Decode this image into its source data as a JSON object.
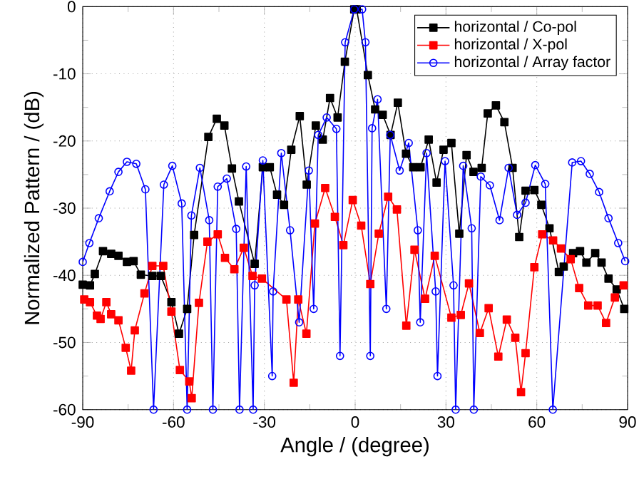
{
  "chart_data": {
    "type": "line",
    "xlabel": "Angle / (degree)",
    "ylabel": "Normalized Pattern / (dB)",
    "xlim": [
      -90,
      90
    ],
    "ylim": [
      -60,
      0
    ],
    "xticks": [
      -90,
      -60,
      -30,
      0,
      30,
      60,
      90
    ],
    "yticks": [
      -60,
      -50,
      -40,
      -30,
      -20,
      -10,
      0
    ],
    "grid": true,
    "legend": "top right",
    "line_style": "solid",
    "series": [
      {
        "name": "horizontal / Co-pol",
        "color": "#000000",
        "marker": "square",
        "x": [
          -90,
          -87.6,
          -86,
          -83.3,
          -80.6,
          -78.2,
          -75.4,
          -73.2,
          -70.8,
          -67,
          -64.2,
          -60.7,
          -58.2,
          -55.5,
          -53.2,
          -48.5,
          -45.7,
          -43.2,
          -40.7,
          -38.4,
          -33.2,
          -30.5,
          -28.2,
          -25.8,
          -23.5,
          -21.1,
          -18.3,
          -16,
          -13,
          -10.7,
          -8.3,
          -5.8,
          -3.4,
          -0.3,
          0.5,
          4.2,
          6.6,
          9.1,
          11.7,
          14.1,
          16.8,
          19.2,
          21.6,
          24.3,
          26.9,
          29.2,
          31.8,
          34.4,
          36.8,
          39.1,
          41.8,
          43.8,
          46.5,
          49.3,
          52,
          54.2,
          56.3,
          59.2,
          61.5,
          64.2,
          67.3,
          68.9,
          72,
          74.3,
          76.4,
          79.3,
          81.4,
          83.7,
          86.4,
          88.9
        ],
        "values": [
          -41.4,
          -41.5,
          -39.8,
          -36.4,
          -36.8,
          -37.1,
          -38,
          -37.9,
          -39.9,
          -40.1,
          -40.1,
          -44,
          -48.7,
          -45,
          -34,
          -19.4,
          -16.7,
          -17.7,
          -24.1,
          -29,
          -38.3,
          -23.9,
          -23.9,
          -28,
          -29.5,
          -21.3,
          -16.3,
          -26.5,
          -17.7,
          -19.8,
          -13.6,
          -16.5,
          -8.2,
          -0.4,
          -0.4,
          -10.2,
          -15.3,
          -16.1,
          -19.1,
          -14.3,
          -21.9,
          -23.9,
          -23.9,
          -19.8,
          -26.2,
          -21.3,
          -20.3,
          -33.8,
          -22.1,
          -24.6,
          -24,
          -15.9,
          -14.7,
          -17.2,
          -24,
          -34.3,
          -27.4,
          -27.3,
          -29.5,
          -33,
          -39.5,
          -38.7,
          -36.7,
          -36.4,
          -38.1,
          -36.7,
          -38.1,
          -40.5,
          -42.1,
          -45
        ]
      },
      {
        "name": "horizontal / X-pol",
        "color": "#ff0000",
        "marker": "square",
        "x": [
          -89.5,
          -87.6,
          -85.3,
          -84.1,
          -82.2,
          -80.6,
          -78.2,
          -75.8,
          -74,
          -72.8,
          -69.6,
          -67,
          -63.4,
          -60.7,
          -57.9,
          -54.8,
          -54,
          -51.6,
          -48.8,
          -45.4,
          -43,
          -39.9,
          -36.8,
          -33.9,
          -30.8,
          -22.7,
          -20.3,
          -18.8,
          -16.1,
          -13.3,
          -9.9,
          -6.7,
          -3.9,
          -0.8,
          2,
          5,
          7.8,
          10.9,
          13.8,
          16.9,
          19.6,
          23.1,
          26.3,
          31.8,
          34.9,
          37.6,
          41.2,
          44.1,
          47.3,
          50.1,
          52.9,
          54.8,
          56.3,
          59.2,
          61.8,
          65.4,
          68,
          71.2,
          74,
          77,
          80.1,
          82.9,
          85.8,
          88.7
        ],
        "values": [
          -43.6,
          -44,
          -46,
          -46.5,
          -44,
          -45.8,
          -46.7,
          -50.8,
          -54.2,
          -48.2,
          -42.7,
          -38.6,
          -38.6,
          -45.4,
          -54.1,
          -55.8,
          -58.3,
          -44.1,
          -35,
          -33.9,
          -37.4,
          -39.1,
          -35.9,
          -40.1,
          -40.5,
          -43.6,
          -56,
          -43.6,
          -48.7,
          -32.3,
          -27,
          -31.3,
          -35.5,
          -28.8,
          -32.6,
          -41.3,
          -33.8,
          -28.3,
          -30.2,
          -47.5,
          -36.2,
          -43.5,
          -37.1,
          -46.3,
          -45.9,
          -41.2,
          -48.6,
          -44.9,
          -52.1,
          -46.6,
          -49.3,
          -57.4,
          -51.6,
          -38.8,
          -33.9,
          -34.8,
          -36,
          -37.6,
          -41.9,
          -44.5,
          -44.5,
          -47.1,
          -43.3,
          -41.5
        ]
      },
      {
        "name": "horizontal / Array factor",
        "color": "#0000ff",
        "marker": "circle",
        "x": [
          -90,
          -87.8,
          -84.7,
          -81.1,
          -78.2,
          -75.4,
          -72.3,
          -69.3,
          -66.6,
          -63.2,
          -60.4,
          -57.3,
          -55.5,
          -54.1,
          -51.3,
          -48.2,
          -47,
          -45.4,
          -42.4,
          -39.3,
          -38.2,
          -36,
          -33.7,
          -33.2,
          -30.5,
          -27.4,
          -27.1,
          -24.4,
          -21.5,
          -18.5,
          -15.3,
          -13.7,
          -12.2,
          -9.4,
          -6.2,
          -5,
          -3.3,
          -0.3,
          2.3,
          3.4,
          5,
          5.6,
          7.4,
          10.3,
          11.6,
          14.7,
          17.7,
          20.7,
          21.5,
          23.6,
          26.6,
          27.2,
          29.7,
          32.5,
          33.2,
          35.7,
          38.5,
          39.2,
          41.5,
          44.5,
          47.7,
          50.7,
          53.5,
          56.3,
          59.5,
          62.8,
          65.3,
          71.7,
          74.6,
          77.5,
          80.6,
          83.7,
          86.9,
          89.2
        ],
        "values": [
          -38,
          -35.2,
          -31.5,
          -27.5,
          -24.6,
          -23.1,
          -23.4,
          -27.2,
          -60,
          -26.5,
          -23.7,
          -29.3,
          -60,
          -31.1,
          -24,
          -31.8,
          -60,
          -26.8,
          -25.6,
          -33.1,
          -60,
          -23.8,
          -60,
          -41.5,
          -22.9,
          -55,
          -42.4,
          -21.8,
          -33.3,
          -47,
          -24.4,
          -45,
          -19.1,
          -16.5,
          -18.2,
          -52,
          -5.3,
          -0.4,
          -0.4,
          -5.3,
          -52,
          -18.1,
          -13.8,
          -45,
          -19.1,
          -24.4,
          -20.3,
          -33.3,
          -47,
          -21.8,
          -42.4,
          -55,
          -23,
          -41.5,
          -60,
          -23.7,
          -33,
          -60,
          -25.3,
          -26.6,
          -31.8,
          -24,
          -31,
          -29.2,
          -23.6,
          -26.4,
          -60,
          -23.2,
          -23,
          -24.9,
          -27.6,
          -31.5,
          -35.2,
          -37.9
        ]
      }
    ]
  }
}
